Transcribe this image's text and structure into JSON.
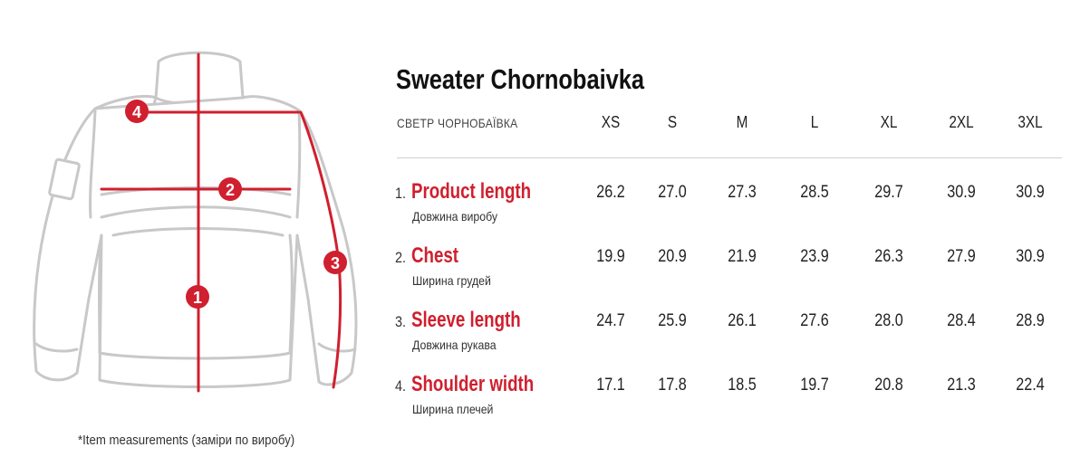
{
  "title": "Sweater Chornobaivka",
  "subtitle": "СВЕТР ЧОРНОБАЇВКА",
  "sizes": [
    "XS",
    "S",
    "M",
    "L",
    "XL",
    "2XL",
    "3XL"
  ],
  "rows": [
    {
      "num": "1.",
      "name": "Product length",
      "sub": "Довжина виробу",
      "values": [
        "26.2",
        "27.0",
        "27.3",
        "28.5",
        "29.7",
        "30.9",
        "30.9"
      ]
    },
    {
      "num": "2.",
      "name": "Chest",
      "sub": "Ширина грудей",
      "values": [
        "19.9",
        "20.9",
        "21.9",
        "23.9",
        "26.3",
        "27.9",
        "30.9"
      ]
    },
    {
      "num": "3.",
      "name": "Sleeve length",
      "sub": "Довжина рукава",
      "values": [
        "24.7",
        "25.9",
        "26.1",
        "27.6",
        "28.0",
        "28.4",
        "28.9"
      ]
    },
    {
      "num": "4.",
      "name": "Shoulder width",
      "sub": "Ширина плечей",
      "values": [
        "17.1",
        "17.8",
        "18.5",
        "19.7",
        "20.8",
        "21.3",
        "22.4"
      ]
    }
  ],
  "markers": [
    "1",
    "2",
    "3",
    "4"
  ],
  "footnote": "*Item measurements (заміри по виробу)",
  "colors": {
    "accent": "#d01f2e",
    "outline": "#c8c8c8",
    "text": "#1c1c1c"
  }
}
